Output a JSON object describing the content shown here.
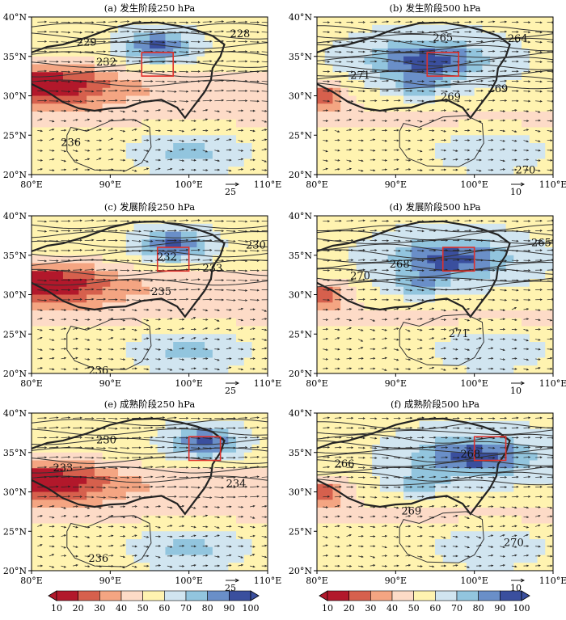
{
  "figure": {
    "x_ticks": [
      "80°E",
      "90°E",
      "100°E",
      "110°E"
    ],
    "y_ticks": [
      "20°N",
      "25°N",
      "30°N",
      "35°N",
      "40°N"
    ]
  },
  "colorbar": {
    "ticks": [
      "10",
      "20",
      "30",
      "40",
      "50",
      "60",
      "70",
      "80",
      "90",
      "100"
    ],
    "colors": [
      "#b2182b",
      "#d6604d",
      "#f4a582",
      "#fddbc7",
      "#fff3b0",
      "#d1e5f0",
      "#92c5de",
      "#6a8fc8",
      "#3a4f9e"
    ]
  },
  "chart_data": [
    {
      "type": "heatmap",
      "title": "(a) 发生阶段250 hPa",
      "ref_vector": "25",
      "xlim": [
        80,
        110
      ],
      "ylim": [
        20,
        40
      ],
      "contour_labels": [
        {
          "text": "229",
          "lon": 87.0,
          "lat": 36.7
        },
        {
          "text": "232",
          "lon": 89.5,
          "lat": 34.2
        },
        {
          "text": "228",
          "lon": 106.5,
          "lat": 37.8
        },
        {
          "text": "236",
          "lon": 85.0,
          "lat": 24.0
        }
      ],
      "box": {
        "lon": [
          94,
          98
        ],
        "lat": [
          32.5,
          35.5
        ]
      }
    },
    {
      "type": "heatmap",
      "title": "(b) 发生阶段500 hPa",
      "ref_vector": "10",
      "xlim": [
        80,
        110
      ],
      "ylim": [
        20,
        40
      ],
      "contour_labels": [
        {
          "text": "265",
          "lon": 96.0,
          "lat": 37.3
        },
        {
          "text": "264",
          "lon": 105.5,
          "lat": 37.2
        },
        {
          "text": "271",
          "lon": 85.5,
          "lat": 32.5
        },
        {
          "text": "269",
          "lon": 103.0,
          "lat": 30.8
        },
        {
          "text": "269",
          "lon": 97.0,
          "lat": 29.8
        },
        {
          "text": "270",
          "lon": 106.5,
          "lat": 20.5
        }
      ],
      "box": {
        "lon": [
          94,
          98
        ],
        "lat": [
          32.5,
          35.5
        ]
      }
    },
    {
      "type": "heatmap",
      "title": "(c) 发展阶段250 hPa",
      "ref_vector": "25",
      "xlim": [
        80,
        110
      ],
      "ylim": [
        20,
        40
      ],
      "contour_labels": [
        {
          "text": "232",
          "lon": 97.2,
          "lat": 34.7
        },
        {
          "text": "230",
          "lon": 108.5,
          "lat": 36.2
        },
        {
          "text": "233",
          "lon": 103.0,
          "lat": 33.3
        },
        {
          "text": "235",
          "lon": 96.5,
          "lat": 30.3
        },
        {
          "text": "236",
          "lon": 88.5,
          "lat": 20.3
        }
      ],
      "box": {
        "lon": [
          96,
          100
        ],
        "lat": [
          33,
          36
        ]
      }
    },
    {
      "type": "heatmap",
      "title": "(d) 发展阶段500 hPa",
      "ref_vector": "10",
      "xlim": [
        80,
        110
      ],
      "ylim": [
        20,
        40
      ],
      "contour_labels": [
        {
          "text": "268",
          "lon": 90.5,
          "lat": 33.8
        },
        {
          "text": "270",
          "lon": 85.5,
          "lat": 32.3
        },
        {
          "text": "265",
          "lon": 108.5,
          "lat": 36.5
        },
        {
          "text": "271",
          "lon": 98.0,
          "lat": 25.0
        }
      ],
      "box": {
        "lon": [
          96,
          100
        ],
        "lat": [
          33,
          36
        ]
      }
    },
    {
      "type": "heatmap",
      "title": "(e) 成熟阶段250 hPa",
      "ref_vector": "25",
      "xlim": [
        80,
        110
      ],
      "ylim": [
        20,
        40
      ],
      "contour_labels": [
        {
          "text": "230",
          "lon": 89.5,
          "lat": 36.5
        },
        {
          "text": "233",
          "lon": 84.0,
          "lat": 33.0
        },
        {
          "text": "234",
          "lon": 106.0,
          "lat": 31.0
        },
        {
          "text": "236",
          "lon": 88.5,
          "lat": 21.5
        }
      ],
      "box": {
        "lon": [
          100,
          104
        ],
        "lat": [
          34,
          37
        ]
      }
    },
    {
      "type": "heatmap",
      "title": "(f) 成熟阶段500 hPa",
      "ref_vector": "10",
      "xlim": [
        80,
        110
      ],
      "ylim": [
        20,
        40
      ],
      "contour_labels": [
        {
          "text": "266",
          "lon": 83.5,
          "lat": 33.5
        },
        {
          "text": "268",
          "lon": 99.5,
          "lat": 34.7
        },
        {
          "text": "269",
          "lon": 92.0,
          "lat": 27.5
        },
        {
          "text": "270",
          "lon": 105.0,
          "lat": 23.5
        }
      ],
      "box": {
        "lon": [
          100,
          104
        ],
        "lat": [
          34,
          37
        ]
      }
    }
  ]
}
